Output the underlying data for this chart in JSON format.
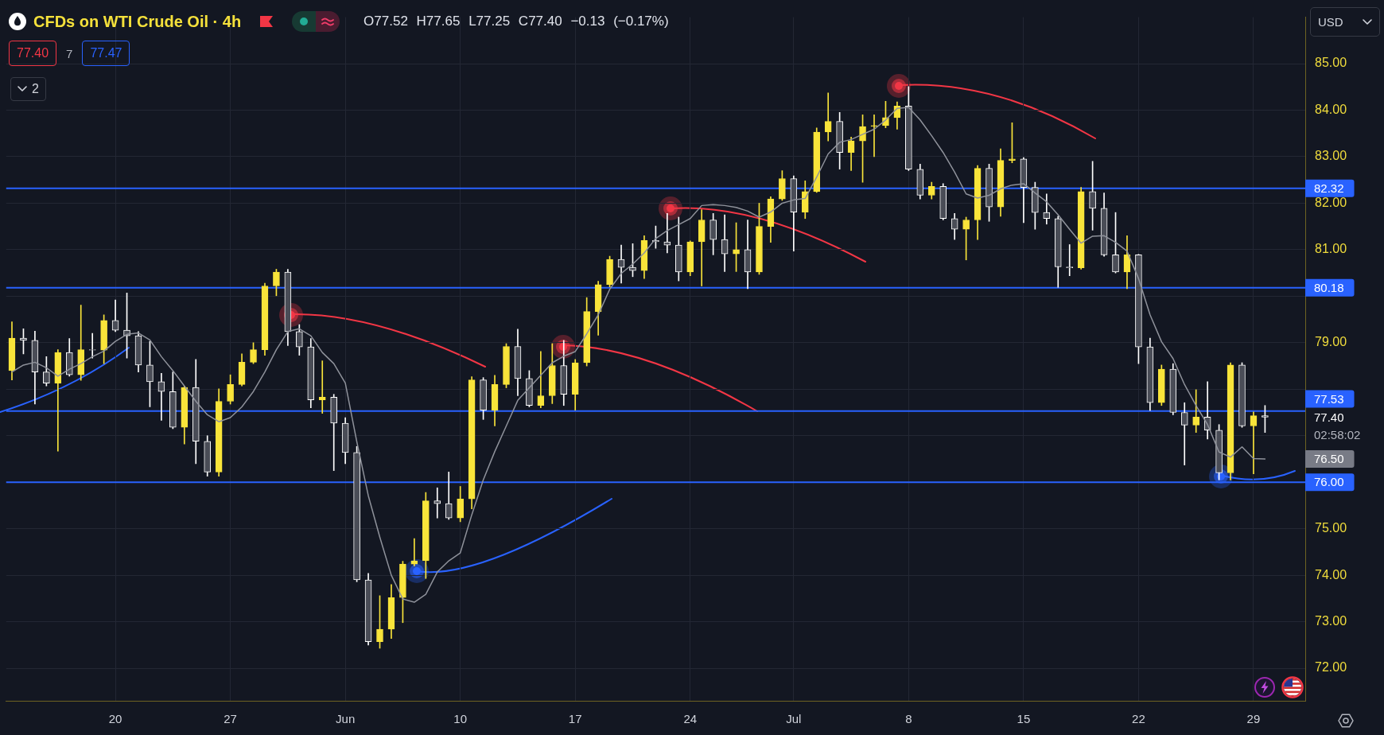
{
  "chart_data": {
    "type": "candlestick",
    "title": "CFDs on WTI Crude Oil · 4h",
    "subtitle": "O77.52 H77.65 L77.25 C77.40 −0.13 (−0.17%)",
    "categories": [
      null,
      null,
      null,
      null,
      null,
      null,
      null,
      null,
      null,
      "20",
      null,
      null,
      null,
      null,
      null,
      null,
      null,
      null,
      null,
      "27",
      null,
      null,
      null,
      null,
      null,
      null,
      null,
      null,
      null,
      "Jun",
      null,
      null,
      null,
      null,
      null,
      null,
      null,
      null,
      null,
      "10",
      null,
      null,
      null,
      null,
      null,
      null,
      null,
      null,
      null,
      "17",
      null,
      null,
      null,
      null,
      null,
      null,
      null,
      null,
      null,
      "24",
      null,
      null,
      null,
      null,
      null,
      null,
      null,
      null,
      "Jul",
      null,
      null,
      null,
      null,
      null,
      null,
      null,
      null,
      null,
      "8",
      null,
      null,
      null,
      null,
      null,
      null,
      null,
      null,
      null,
      "15",
      null,
      null,
      null,
      null,
      null,
      null,
      null,
      null,
      null,
      "22",
      null,
      null,
      null,
      null,
      null,
      null,
      null,
      null,
      null,
      "29",
      null,
      null,
      null,
      null
    ],
    "series": [
      {
        "type": "candlestick",
        "ohlc": [
          [
            78.4,
            79.45,
            78.2,
            79.1
          ],
          [
            79.1,
            79.3,
            78.76,
            79.05
          ],
          [
            79.05,
            79.25,
            77.68,
            78.37
          ],
          [
            78.37,
            78.7,
            78.07,
            78.13
          ],
          [
            78.13,
            78.85,
            76.67,
            78.79
          ],
          [
            78.79,
            79.09,
            78.28,
            78.31
          ],
          [
            78.31,
            79.81,
            78.19,
            78.85
          ],
          [
            78.85,
            79.2,
            78.67,
            78.84
          ],
          [
            78.84,
            79.6,
            78.55,
            79.48
          ],
          [
            79.48,
            79.92,
            79.24,
            79.27
          ],
          [
            79.27,
            80.07,
            78.67,
            79.15
          ],
          [
            79.15,
            79.24,
            78.37,
            78.52
          ],
          [
            78.52,
            79.03,
            77.62,
            78.16
          ],
          [
            78.16,
            78.34,
            77.33,
            77.95
          ],
          [
            77.95,
            78.37,
            77.15,
            77.18
          ],
          [
            77.18,
            78.07,
            76.82,
            78.04
          ],
          [
            78.04,
            78.64,
            76.4,
            76.88
          ],
          [
            76.88,
            77.0,
            76.13,
            76.22
          ],
          [
            76.22,
            78.01,
            76.13,
            77.74
          ],
          [
            77.74,
            78.31,
            77.68,
            78.1
          ],
          [
            78.1,
            78.76,
            78.07,
            78.58
          ],
          [
            78.58,
            79.0,
            78.55,
            78.85
          ],
          [
            78.85,
            80.28,
            78.73,
            80.22
          ],
          [
            80.22,
            80.58,
            80.01,
            80.52
          ],
          [
            80.52,
            80.58,
            78.94,
            79.24
          ],
          [
            79.24,
            79.39,
            78.73,
            78.91
          ],
          [
            78.91,
            79.09,
            77.6,
            77.77
          ],
          [
            77.77,
            78.61,
            77.48,
            77.83
          ],
          [
            77.83,
            77.89,
            76.25,
            77.27
          ],
          [
            77.27,
            77.39,
            76.4,
            76.64
          ],
          [
            76.64,
            76.77,
            73.86,
            73.9
          ],
          [
            73.9,
            74.04,
            72.5,
            72.57
          ],
          [
            72.57,
            73.56,
            72.43,
            72.84
          ],
          [
            72.84,
            73.8,
            72.64,
            73.52
          ],
          [
            73.52,
            74.3,
            72.98,
            74.24
          ],
          [
            74.24,
            74.79,
            74.2,
            74.31
          ],
          [
            74.31,
            75.78,
            73.93,
            75.6
          ],
          [
            75.6,
            75.88,
            75.23,
            75.54
          ],
          [
            75.54,
            76.22,
            75.2,
            75.23
          ],
          [
            75.23,
            75.91,
            75.15,
            75.64
          ],
          [
            75.64,
            78.27,
            75.43,
            78.2
          ],
          [
            78.2,
            78.25,
            77.35,
            77.55
          ],
          [
            77.55,
            78.3,
            77.21,
            78.1
          ],
          [
            78.1,
            78.98,
            78.03,
            78.92
          ],
          [
            78.92,
            79.29,
            77.86,
            78.23
          ],
          [
            78.23,
            78.4,
            77.62,
            77.65
          ],
          [
            77.65,
            78.81,
            77.6,
            77.86
          ],
          [
            77.86,
            78.98,
            77.69,
            78.51
          ],
          [
            78.51,
            79.05,
            77.65,
            77.89
          ],
          [
            77.89,
            78.64,
            77.55,
            78.57
          ],
          [
            78.57,
            79.97,
            78.5,
            79.67
          ],
          [
            79.67,
            80.32,
            79.16,
            80.25
          ],
          [
            80.25,
            80.86,
            80.2,
            80.79
          ],
          [
            80.79,
            81.1,
            80.28,
            80.62
          ],
          [
            80.62,
            81.13,
            80.42,
            80.55
          ],
          [
            80.55,
            81.3,
            80.38,
            81.2
          ],
          [
            81.2,
            81.51,
            81.03,
            81.17
          ],
          [
            81.17,
            81.78,
            80.93,
            81.1
          ],
          [
            81.1,
            81.7,
            80.33,
            80.52
          ],
          [
            80.52,
            81.19,
            80.44,
            81.17
          ],
          [
            81.17,
            81.86,
            80.22,
            81.64
          ],
          [
            81.64,
            81.78,
            80.89,
            81.22
          ],
          [
            81.22,
            81.75,
            80.53,
            80.91
          ],
          [
            80.91,
            81.58,
            80.53,
            81.0
          ],
          [
            81.0,
            81.64,
            80.16,
            80.52
          ],
          [
            80.52,
            82.0,
            80.47,
            81.5
          ],
          [
            81.5,
            82.14,
            81.16,
            82.09
          ],
          [
            82.09,
            82.7,
            82.06,
            82.53
          ],
          [
            82.53,
            82.59,
            80.97,
            81.81
          ],
          [
            81.81,
            82.48,
            81.67,
            82.25
          ],
          [
            82.25,
            83.62,
            82.23,
            83.53
          ],
          [
            83.53,
            84.37,
            83.34,
            83.76
          ],
          [
            83.76,
            83.95,
            82.73,
            83.09
          ],
          [
            83.09,
            83.42,
            82.7,
            83.34
          ],
          [
            83.34,
            83.9,
            82.45,
            83.65
          ],
          [
            83.65,
            83.9,
            83.0,
            83.67
          ],
          [
            83.67,
            84.19,
            83.62,
            83.84
          ],
          [
            83.84,
            84.18,
            83.59,
            84.09
          ],
          [
            84.09,
            84.51,
            82.7,
            82.73
          ],
          [
            82.73,
            82.84,
            82.09,
            82.17
          ],
          [
            82.17,
            82.45,
            82.09,
            82.36
          ],
          [
            82.36,
            82.42,
            81.64,
            81.67
          ],
          [
            81.67,
            81.78,
            81.22,
            81.44
          ],
          [
            81.44,
            81.7,
            80.78,
            81.64
          ],
          [
            81.64,
            82.81,
            81.22,
            82.75
          ],
          [
            82.75,
            82.84,
            81.61,
            81.92
          ],
          [
            81.92,
            83.17,
            81.72,
            82.92
          ],
          [
            82.92,
            83.73,
            82.87,
            82.95
          ],
          [
            82.95,
            82.98,
            81.58,
            82.34
          ],
          [
            82.34,
            82.45,
            81.44,
            81.8
          ],
          [
            81.8,
            82.2,
            81.55,
            81.67
          ],
          [
            81.67,
            81.72,
            80.19,
            80.63
          ],
          [
            80.63,
            81.11,
            80.44,
            80.61
          ],
          [
            80.61,
            82.34,
            80.58,
            82.25
          ],
          [
            82.25,
            82.9,
            81.42,
            81.89
          ],
          [
            81.89,
            82.22,
            80.86,
            80.89
          ],
          [
            80.89,
            81.8,
            80.5,
            80.52
          ],
          [
            80.52,
            81.3,
            80.16,
            80.89
          ],
          [
            80.89,
            80.9,
            78.55,
            78.91
          ],
          [
            78.91,
            79.1,
            77.54,
            77.71
          ],
          [
            77.71,
            78.52,
            77.65,
            78.43
          ],
          [
            78.43,
            78.55,
            77.45,
            77.5
          ],
          [
            77.5,
            77.71,
            76.37,
            77.23
          ],
          [
            77.23,
            77.99,
            77.07,
            77.4
          ],
          [
            77.4,
            78.16,
            76.93,
            77.12
          ],
          [
            77.12,
            77.24,
            76.05,
            76.2
          ],
          [
            76.2,
            78.57,
            76.05,
            78.52
          ],
          [
            78.52,
            78.57,
            77.18,
            77.21
          ],
          [
            77.21,
            77.51,
            76.18,
            77.43
          ],
          [
            77.43,
            77.65,
            77.07,
            77.4
          ],
          null,
          null,
          null
        ],
        "colors": [
          "#f9e43a",
          "#ffffff",
          "#ffffff",
          "#ffffff",
          "#f9e43a",
          "#ffffff",
          "#f9e43a",
          "#ffffff",
          "#f9e43a",
          "#ffffff",
          "#ffffff",
          "#ffffff",
          "#ffffff",
          "#ffffff",
          "#ffffff",
          "#f9e43a",
          "#ffffff",
          "#ffffff",
          "#f9e43a",
          "#f9e43a",
          "#f9e43a",
          "#f9e43a",
          "#f9e43a",
          "#f9e43a",
          "#ffffff",
          "#ffffff",
          "#ffffff",
          "#f9e43a",
          "#ffffff",
          "#ffffff",
          "#ffffff",
          "#ffffff",
          "#f9e43a",
          "#f9e43a",
          "#f9e43a",
          "#f9e43a",
          "#f9e43a",
          "#ffffff",
          "#ffffff",
          "#f9e43a",
          "#f9e43a",
          "#ffffff",
          "#f9e43a",
          "#f9e43a",
          "#ffffff",
          "#ffffff",
          "#f9e43a",
          "#f9e43a",
          "#ffffff",
          "#f9e43a",
          "#f9e43a",
          "#f9e43a",
          "#f9e43a",
          "#ffffff",
          "#ffffff",
          "#f9e43a",
          "#ffffff",
          "#ffffff",
          "#ffffff",
          "#f9e43a",
          "#f9e43a",
          "#ffffff",
          "#ffffff",
          "#f9e43a",
          "#ffffff",
          "#f9e43a",
          "#f9e43a",
          "#f9e43a",
          "#ffffff",
          "#f9e43a",
          "#f9e43a",
          "#f9e43a",
          "#ffffff",
          "#f9e43a",
          "#f9e43a",
          "#f9e43a",
          "#f9e43a",
          "#f9e43a",
          "#ffffff",
          "#ffffff",
          "#f9e43a",
          "#ffffff",
          "#ffffff",
          "#f9e43a",
          "#f9e43a",
          "#ffffff",
          "#f9e43a",
          "#f9e43a",
          "#ffffff",
          "#ffffff",
          "#ffffff",
          "#ffffff",
          "#ffffff",
          "#f9e43a",
          "#ffffff",
          "#ffffff",
          "#ffffff",
          "#f9e43a",
          "#ffffff",
          "#ffffff",
          "#f9e43a",
          "#ffffff",
          "#ffffff",
          "#f9e43a",
          "#ffffff",
          "#ffffff",
          "#f9e43a",
          "#ffffff",
          "#f9e43a",
          "#ffffff",
          null,
          null,
          null
        ]
      },
      {
        "type": "line",
        "color": "#8f929b",
        "values": [
          78.37,
          78.52,
          78.58,
          78.46,
          78.28,
          78.43,
          78.55,
          78.7,
          78.82,
          79.03,
          79.18,
          79.21,
          79.06,
          78.7,
          78.4,
          78.07,
          77.74,
          77.45,
          77.3,
          77.39,
          77.62,
          77.95,
          78.37,
          78.85,
          79.24,
          79.3,
          79.15,
          78.79,
          78.55,
          78.13,
          76.87,
          75.71,
          74.82,
          74.0,
          73.49,
          73.42,
          73.59,
          74.07,
          74.31,
          74.48,
          75.3,
          76.05,
          76.66,
          77.21,
          77.76,
          78.03,
          78.3,
          78.57,
          78.71,
          78.81,
          79.19,
          79.6,
          80.15,
          80.49,
          80.69,
          80.93,
          81.24,
          81.41,
          81.54,
          81.67,
          81.95,
          81.97,
          81.95,
          81.91,
          81.83,
          81.7,
          81.81,
          82.0,
          82.07,
          82.1,
          82.56,
          83.06,
          83.31,
          83.37,
          83.48,
          83.59,
          83.79,
          84.04,
          84.06,
          83.79,
          83.45,
          83.09,
          82.67,
          82.2,
          82.11,
          82.17,
          82.31,
          82.39,
          82.42,
          82.22,
          82.03,
          81.75,
          81.44,
          81.14,
          81.29,
          81.3,
          81.16,
          80.97,
          80.38,
          79.6,
          79.02,
          78.66,
          78.1,
          77.65,
          77.24,
          76.65,
          76.54,
          76.76,
          76.51,
          76.5,
          null,
          null,
          null
        ]
      }
    ],
    "ylim": [
      71.3,
      86
    ],
    "yticks": [
      {
        "value": 72,
        "label": "72.00"
      },
      {
        "value": 73,
        "label": "73.00"
      },
      {
        "value": 74,
        "label": "74.00"
      },
      {
        "value": 75,
        "label": "75.00"
      },
      {
        "value": 76,
        "label": null
      },
      {
        "value": 77,
        "label": null
      },
      {
        "value": 78,
        "label": null
      },
      {
        "value": 79,
        "label": "79.00"
      },
      {
        "value": 80,
        "label": null
      },
      {
        "value": 81,
        "label": "81.00"
      },
      {
        "value": 82,
        "label": "82.00"
      },
      {
        "value": 83,
        "label": "83.00"
      },
      {
        "value": 84,
        "label": "84.00"
      },
      {
        "value": 85,
        "label": "85.00"
      }
    ],
    "ref_lines": [
      {
        "axis": "y",
        "value": 82.32,
        "label": "82.32",
        "color": "#2962ff"
      },
      {
        "axis": "y",
        "value": 80.18,
        "label": "80.18",
        "color": "#2962ff"
      },
      {
        "axis": "y",
        "value": 77.53,
        "label": "77.53",
        "color": "#2962ff"
      },
      {
        "axis": "y",
        "value": 76.0,
        "label": "76.00",
        "color": "#2962ff"
      }
    ],
    "annotations": [
      "77.40",
      "7",
      "77.47",
      "2",
      "USD",
      "77.40",
      "02:58:02",
      "76.50"
    ],
    "grid": true
  }
}
